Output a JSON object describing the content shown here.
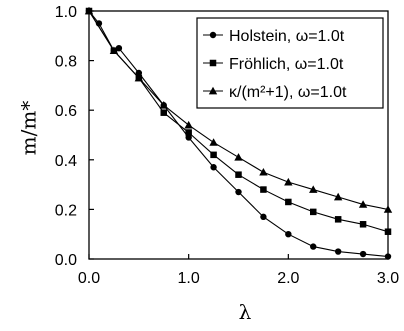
{
  "chart_data": {
    "type": "line",
    "xlabel": "λ",
    "ylabel": "m/m*",
    "xlim": [
      0.0,
      3.0
    ],
    "ylim": [
      0.0,
      1.0
    ],
    "xticks": [
      "0.0",
      "1.0",
      "2.0",
      "3.0"
    ],
    "yticks": [
      "0.0",
      "0.2",
      "0.4",
      "0.6",
      "0.8",
      "1.0"
    ],
    "grid": false,
    "legend_position": "top-right",
    "series": [
      {
        "name": "Holstein, ω=1.0t",
        "marker": "circle",
        "x": [
          0.0,
          0.1,
          0.25,
          0.3,
          0.5,
          0.75,
          1.0,
          1.25,
          1.5,
          1.75,
          2.0,
          2.25,
          2.5,
          2.75,
          3.0
        ],
        "y": [
          1.0,
          0.95,
          0.84,
          0.85,
          0.75,
          0.62,
          0.49,
          0.37,
          0.27,
          0.17,
          0.1,
          0.05,
          0.03,
          0.02,
          0.01
        ]
      },
      {
        "name": "Fröhlich, ω=1.0t",
        "marker": "square",
        "x": [
          0.0,
          0.25,
          0.5,
          0.75,
          1.0,
          1.25,
          1.5,
          1.75,
          2.0,
          2.25,
          2.5,
          2.75,
          3.0
        ],
        "y": [
          1.0,
          0.84,
          0.73,
          0.59,
          0.51,
          0.42,
          0.34,
          0.28,
          0.23,
          0.19,
          0.16,
          0.14,
          0.11
        ]
      },
      {
        "name": "κ/(m²+1), ω=1.0t",
        "marker": "triangle",
        "x": [
          0.0,
          0.25,
          0.5,
          0.75,
          1.0,
          1.25,
          1.5,
          1.75,
          2.0,
          2.25,
          2.5,
          2.75,
          3.0
        ],
        "y": [
          1.0,
          0.84,
          0.73,
          0.62,
          0.54,
          0.47,
          0.41,
          0.35,
          0.31,
          0.28,
          0.25,
          0.22,
          0.2
        ]
      }
    ]
  }
}
